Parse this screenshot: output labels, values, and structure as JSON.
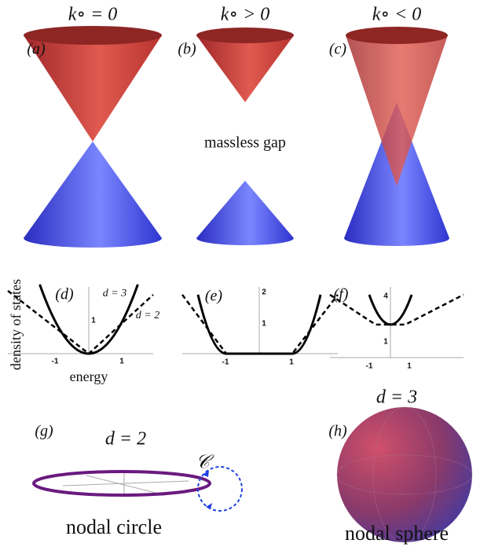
{
  "headers": [
    "k∘ = 0",
    "k∘ > 0",
    "k∘ < 0"
  ],
  "panel_labels": [
    "(a)",
    "(b)",
    "(c)",
    "(d)",
    "(e)",
    "(f)",
    "(g)",
    "(h)"
  ],
  "gap_label": "massless gap",
  "dos": {
    "y_axis_label": "density of states",
    "x_axis_label": "energy",
    "d": {
      "x_ticks": [
        "-1",
        "1"
      ],
      "y_ticks": [
        "1"
      ],
      "curve_labels": [
        "d = 3",
        "d = 2"
      ]
    },
    "e": {
      "x_ticks": [
        "-1",
        "1"
      ],
      "y_ticks": [
        "1",
        "2"
      ]
    },
    "f": {
      "x_ticks": [
        "-1",
        "1"
      ],
      "y_ticks": [
        "1",
        "4"
      ]
    }
  },
  "nodal": {
    "circle_dim": "d = 2",
    "contour": "𝒞",
    "circle_label": "nodal circle",
    "sphere_dim": "d = 3",
    "sphere_label": "nodal sphere"
  }
}
